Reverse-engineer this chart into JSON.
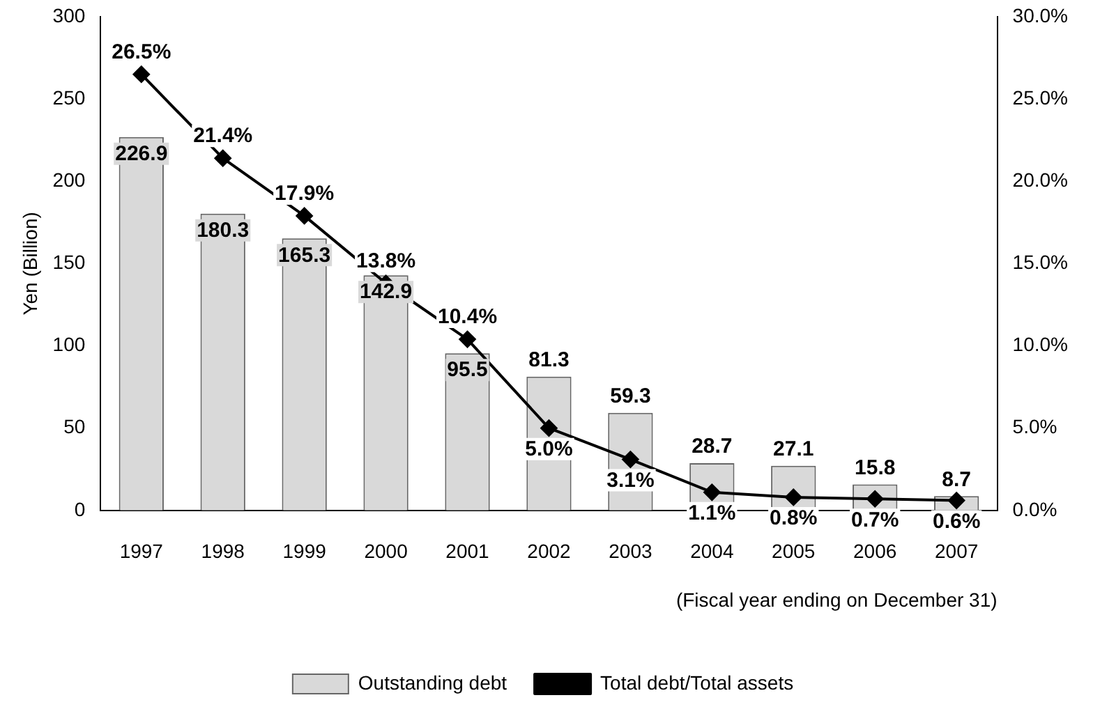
{
  "chart_data": {
    "type": "bar",
    "categories": [
      "1997",
      "1998",
      "1999",
      "2000",
      "2001",
      "2002",
      "2003",
      "2004",
      "2005",
      "2006",
      "2007"
    ],
    "series": [
      {
        "name": "Outstanding debt",
        "color": "#d9d9d9",
        "values": [
          226.9,
          180.3,
          165.3,
          142.9,
          95.5,
          81.3,
          59.3,
          28.7,
          27.1,
          15.8,
          8.7
        ]
      },
      {
        "name": "Total debt/Total assets",
        "type": "line",
        "axis": "y2",
        "color": "#000000",
        "marker": "diamond",
        "values": [
          26.5,
          21.4,
          17.9,
          13.8,
          10.4,
          5.0,
          3.1,
          1.1,
          0.8,
          0.7,
          0.6
        ],
        "value_labels": [
          "26.5%",
          "21.4%",
          "17.9%",
          "13.8%",
          "10.4%",
          "5.0%",
          "3.1%",
          "1.1%",
          "0.8%",
          "0.7%",
          "0.6%"
        ]
      }
    ],
    "ylabel": "Yen (Billion)",
    "xlabel": "(Fiscal year ending on December 31)",
    "ylim": [
      0,
      300
    ],
    "yticks": [
      0,
      50,
      100,
      150,
      200,
      250,
      300
    ],
    "y2lim": [
      0,
      30
    ],
    "y2ticks": [
      {
        "value": 0,
        "label": "0.0%"
      },
      {
        "value": 5,
        "label": "5.0%"
      },
      {
        "value": 10,
        "label": "10.0%"
      },
      {
        "value": 15,
        "label": "15.0%"
      },
      {
        "value": 20,
        "label": "20.0%"
      },
      {
        "value": 25,
        "label": "25.0%"
      },
      {
        "value": 30,
        "label": "30.0%"
      }
    ],
    "data_labels": true,
    "legend": "bottom",
    "grid": false
  }
}
